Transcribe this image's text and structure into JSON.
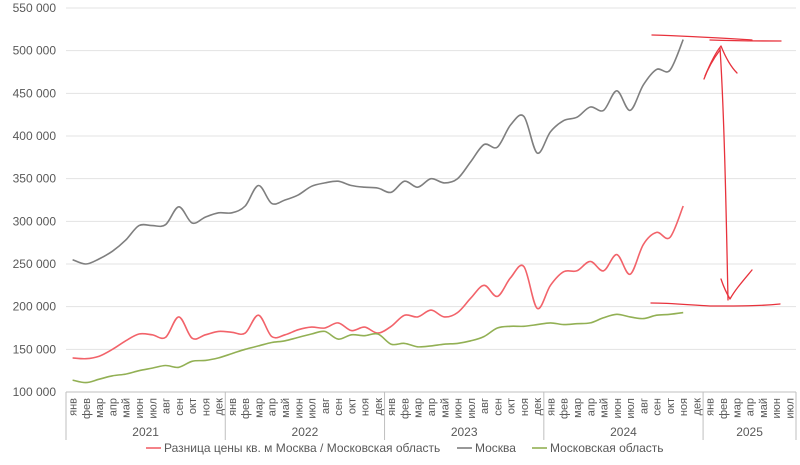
{
  "chart_data": {
    "type": "line",
    "title": "",
    "xlabel": "",
    "ylabel": "",
    "ylim": [
      100000,
      550000
    ],
    "yticks": [
      100000,
      150000,
      200000,
      250000,
      300000,
      350000,
      400000,
      450000,
      500000,
      550000
    ],
    "ytick_labels": [
      "100 000",
      "150 000",
      "200 000",
      "250 000",
      "300 000",
      "350 000",
      "400 000",
      "450 000",
      "500 000",
      "550 000"
    ],
    "grid": "horizontal",
    "legend_position": "bottom",
    "month_labels": [
      "янв",
      "фев",
      "мар",
      "апр",
      "май",
      "июн",
      "июл",
      "авг",
      "сен",
      "окт",
      "ноя",
      "дек"
    ],
    "years": [
      {
        "label": "2021",
        "months": 12
      },
      {
        "label": "2022",
        "months": 12
      },
      {
        "label": "2023",
        "months": 12
      },
      {
        "label": "2024",
        "months": 12
      },
      {
        "label": "2025",
        "months": 7
      }
    ],
    "series": [
      {
        "name": "Разница цены кв. м Москва / Московская область",
        "color": "#f2636a",
        "values": [
          140000,
          139000,
          142000,
          150000,
          160000,
          168000,
          167000,
          164000,
          188000,
          163000,
          167000,
          171000,
          170000,
          169000,
          190000,
          165000,
          167000,
          173000,
          176000,
          175000,
          181000,
          172000,
          176000,
          169000,
          177000,
          190000,
          188000,
          196000,
          188000,
          193000,
          210000,
          225000,
          212000,
          234000,
          247000,
          198000,
          225000,
          241000,
          242000,
          253000,
          242000,
          261000,
          238000,
          273000,
          287000,
          281000,
          318000
        ]
      },
      {
        "name": "Москва",
        "color": "#7f7f7f",
        "values": [
          255000,
          250000,
          256000,
          265000,
          278000,
          295000,
          295000,
          296000,
          317000,
          298000,
          305000,
          310000,
          310000,
          318000,
          342000,
          321000,
          325000,
          331000,
          341000,
          345000,
          347000,
          342000,
          340000,
          339000,
          334000,
          347000,
          340000,
          350000,
          345000,
          350000,
          370000,
          390000,
          387000,
          413000,
          423000,
          380000,
          405000,
          418000,
          422000,
          434000,
          430000,
          453000,
          430000,
          460000,
          478000,
          477000,
          513000
        ]
      },
      {
        "name": "Московская область",
        "color": "#92b054",
        "values": [
          114000,
          111000,
          115000,
          119000,
          121000,
          125000,
          128000,
          131000,
          129000,
          136000,
          137000,
          140000,
          145000,
          150000,
          154000,
          158000,
          160000,
          164000,
          168000,
          171000,
          162000,
          167000,
          166000,
          168000,
          156000,
          157000,
          153000,
          154000,
          156000,
          157000,
          160000,
          165000,
          175000,
          177000,
          177000,
          179000,
          181000,
          179000,
          180000,
          181000,
          187000,
          191000,
          188000,
          186000,
          190000,
          191000,
          193000
        ]
      }
    ],
    "annotations": [
      {
        "type": "handwritten-arrow",
        "color": "#e8323c",
        "description": "red hand-drawn double-headed arrow with brackets between the Moscow peak and the price-difference level, fev–apr 2025"
      }
    ]
  }
}
